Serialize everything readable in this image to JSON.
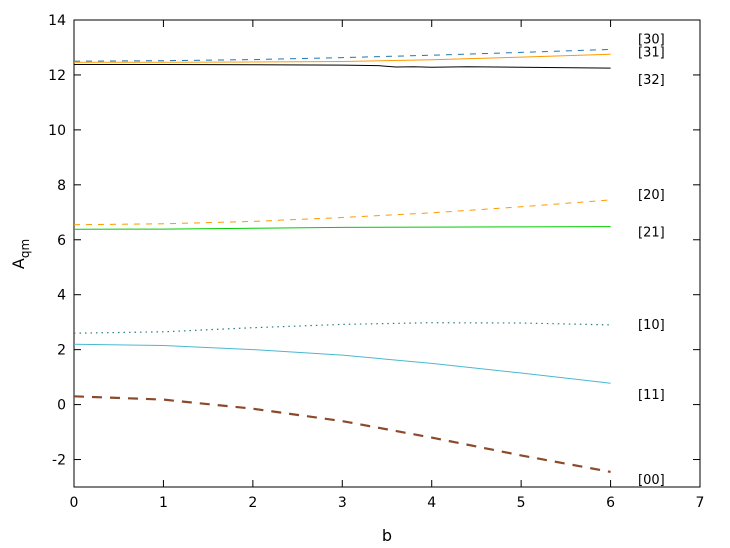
{
  "chart_data": {
    "type": "line",
    "title": "",
    "xlabel": "b",
    "ylabel": "A",
    "ylabel_subscript": "qm",
    "xlim": [
      0,
      7
    ],
    "ylim": [
      -3,
      14
    ],
    "xticks": [
      0,
      1,
      2,
      3,
      4,
      5,
      6,
      7
    ],
    "yticks": [
      -2,
      0,
      2,
      4,
      6,
      8,
      10,
      12,
      14
    ],
    "grid": false,
    "legend": "labels at line ends (right)",
    "series": [
      {
        "name": "[30]",
        "color": "#1f77b4",
        "dash": "dashed",
        "x": [
          0,
          1,
          2,
          3,
          4,
          5,
          6
        ],
        "y": [
          12.5,
          12.52,
          12.56,
          12.63,
          12.72,
          12.82,
          12.93
        ]
      },
      {
        "name": "[31]",
        "color": "#ff9900",
        "dash": "solid",
        "x": [
          0,
          1,
          2,
          3,
          4,
          5,
          6
        ],
        "y": [
          12.46,
          12.46,
          12.47,
          12.49,
          12.55,
          12.65,
          12.75
        ]
      },
      {
        "name": "[32]",
        "color": "#000000",
        "dash": "solid",
        "x": [
          0,
          1,
          2,
          3,
          3.4,
          3.6,
          3.8,
          4,
          4.4,
          5,
          6
        ],
        "y": [
          12.38,
          12.38,
          12.37,
          12.36,
          12.34,
          12.29,
          12.3,
          12.28,
          12.3,
          12.28,
          12.25
        ]
      },
      {
        "name": "[20]",
        "color": "#ff9900",
        "dash": "dashed",
        "x": [
          0,
          1,
          2,
          3,
          4,
          5,
          6
        ],
        "y": [
          6.55,
          6.58,
          6.67,
          6.81,
          6.98,
          7.2,
          7.45
        ]
      },
      {
        "name": "[21]",
        "color": "#00cc00",
        "dash": "solid",
        "x": [
          0,
          1,
          2,
          3,
          4,
          5,
          6
        ],
        "y": [
          6.38,
          6.39,
          6.42,
          6.45,
          6.46,
          6.47,
          6.48
        ]
      },
      {
        "name": "[10]",
        "color": "#2a7f7f",
        "dash": "dotted",
        "x": [
          0,
          1,
          2,
          3,
          4,
          5,
          6
        ],
        "y": [
          2.6,
          2.65,
          2.8,
          2.92,
          2.98,
          2.97,
          2.9
        ]
      },
      {
        "name": "[11]",
        "color": "#4ab8d0",
        "dash": "solid",
        "x": [
          0,
          1,
          2,
          3,
          4,
          5,
          6
        ],
        "y": [
          2.2,
          2.15,
          2.0,
          1.8,
          1.5,
          1.15,
          0.78
        ]
      },
      {
        "name": "[00]",
        "color": "#8b4a2b",
        "dash": "longdash",
        "x": [
          0,
          1,
          2,
          3,
          4,
          5,
          6
        ],
        "y": [
          0.3,
          0.18,
          -0.15,
          -0.6,
          -1.2,
          -1.85,
          -2.45
        ]
      }
    ]
  }
}
